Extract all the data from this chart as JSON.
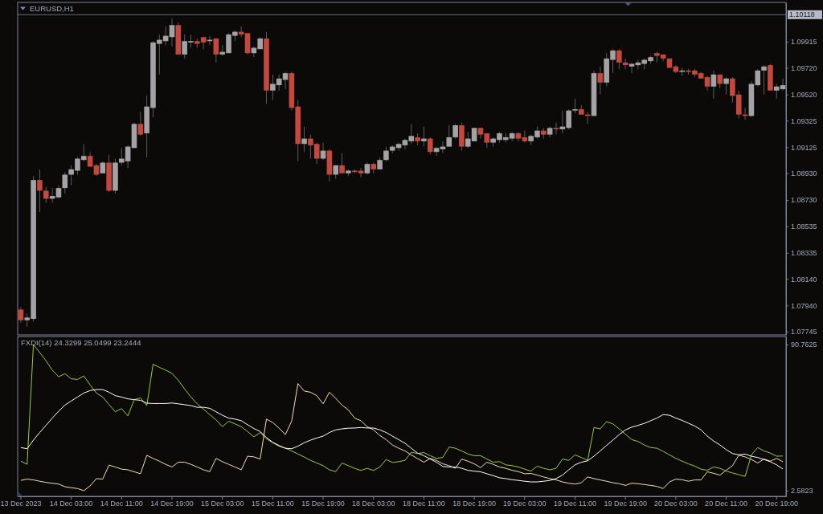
{
  "chart_data": [
    {
      "type": "candlestick",
      "title": "EURUSD,H1",
      "categories": [
        null,
        null,
        null,
        null,
        null,
        null,
        null,
        null,
        null,
        null,
        null,
        null,
        null,
        null,
        null,
        null,
        null,
        null,
        null,
        null,
        null,
        null,
        null,
        null,
        null,
        null,
        null,
        null,
        null,
        null,
        null,
        null,
        null,
        null,
        null,
        null,
        null,
        null,
        null,
        null,
        null,
        null,
        null,
        null,
        null,
        null,
        null,
        null,
        null,
        null,
        null,
        null,
        null,
        null,
        null,
        null,
        null,
        null,
        null,
        null,
        null,
        null,
        null,
        null,
        null,
        null,
        null,
        null,
        null,
        null,
        null,
        null,
        null,
        null,
        null,
        null,
        null,
        null,
        null,
        null,
        null,
        null,
        null,
        null,
        null,
        null,
        null,
        null,
        null,
        null,
        null,
        null,
        null,
        null,
        null,
        null,
        null,
        null,
        null,
        null,
        null,
        null,
        null,
        null,
        null,
        null,
        null,
        null,
        null,
        null,
        null,
        null,
        null,
        null,
        null,
        null,
        null,
        null,
        null,
        null,
        null,
        null
      ],
      "ohlc": [
        [
          1.0791,
          1.0793,
          1.0781,
          1.0783
        ],
        [
          1.0783,
          1.0788,
          1.0778,
          1.0785
        ],
        [
          1.0784,
          1.0891,
          1.0782,
          1.0888
        ],
        [
          1.0888,
          1.0896,
          1.0864,
          1.088
        ],
        [
          1.088,
          1.0883,
          1.0871,
          1.0874
        ],
        [
          1.0874,
          1.0882,
          1.0871,
          1.0876
        ],
        [
          1.0875,
          1.0884,
          1.0874,
          1.0882
        ],
        [
          1.0882,
          1.0894,
          1.0878,
          1.0892
        ],
        [
          1.0892,
          1.0899,
          1.0884,
          1.0896
        ],
        [
          1.0895,
          1.0905,
          1.0892,
          1.0904
        ],
        [
          1.0903,
          1.0915,
          1.0902,
          1.0906
        ],
        [
          1.0906,
          1.0909,
          1.0898,
          1.0898
        ],
        [
          1.0899,
          1.09,
          1.0891,
          1.0892
        ],
        [
          1.0893,
          1.0902,
          1.0893,
          1.0901
        ],
        [
          1.0901,
          1.0907,
          1.0879,
          1.088
        ],
        [
          1.088,
          1.0904,
          1.0878,
          1.0901
        ],
        [
          1.0901,
          1.0912,
          1.0899,
          1.0904
        ],
        [
          1.0902,
          1.0914,
          1.0897,
          1.0913
        ],
        [
          1.0912,
          1.0931,
          1.0912,
          1.093
        ],
        [
          1.093,
          1.0939,
          1.0921,
          1.0922
        ],
        [
          1.0923,
          1.0951,
          1.0905,
          1.0943
        ],
        [
          1.0942,
          1.0992,
          1.0935,
          1.0991
        ],
        [
          1.099,
          1.0997,
          1.0967,
          1.0993
        ],
        [
          1.0992,
          1.1003,
          1.0989,
          1.0996
        ],
        [
          1.0995,
          1.1009,
          1.0988,
          1.1004
        ],
        [
          1.1004,
          1.1006,
          1.0982,
          1.0982
        ],
        [
          1.0982,
          1.0997,
          1.0979,
          1.0992
        ],
        [
          1.0991,
          1.0997,
          1.0987,
          1.0992
        ],
        [
          1.0992,
          1.0994,
          1.0987,
          1.099
        ],
        [
          1.0995,
          1.0995,
          1.0986,
          1.0991
        ],
        [
          1.0992,
          1.0996,
          1.0989,
          1.0993
        ],
        [
          1.0994,
          1.0994,
          1.0976,
          1.0982
        ],
        [
          1.0982,
          1.0989,
          1.0981,
          1.0984
        ],
        [
          1.0983,
          1.0998,
          1.0983,
          1.0997
        ],
        [
          1.0996,
          1.1,
          1.0992,
          1.0999
        ],
        [
          1.0999,
          1.1003,
          1.0995,
          1.0997
        ],
        [
          1.0998,
          1.0998,
          1.0982,
          1.0983
        ],
        [
          1.0983,
          1.0988,
          1.098,
          1.0987
        ],
        [
          1.0986,
          1.0995,
          1.0986,
          1.0994
        ],
        [
          1.0994,
          1.0999,
          1.0945,
          1.0955
        ],
        [
          1.0955,
          1.0967,
          1.0948,
          1.096
        ],
        [
          1.0959,
          1.0967,
          1.0955,
          1.0964
        ],
        [
          1.0963,
          1.0969,
          1.0956,
          1.0968
        ],
        [
          1.0968,
          1.0969,
          1.094,
          1.0942
        ],
        [
          1.0943,
          1.0948,
          1.0902,
          1.0915
        ],
        [
          1.0915,
          1.0928,
          1.0909,
          1.0919
        ],
        [
          1.0919,
          1.0922,
          1.0904,
          1.0914
        ],
        [
          1.0915,
          1.0916,
          1.09,
          1.0904
        ],
        [
          1.0904,
          1.0916,
          1.0903,
          1.091
        ],
        [
          1.091,
          1.0911,
          1.0887,
          1.0892
        ],
        [
          1.0892,
          1.0899,
          1.0889,
          1.0899
        ],
        [
          1.0899,
          1.0908,
          1.0893,
          1.0893
        ],
        [
          1.0893,
          1.0896,
          1.0891,
          1.0895
        ],
        [
          1.0895,
          1.0896,
          1.0893,
          1.0894
        ],
        [
          1.0895,
          1.0897,
          1.089,
          1.0893
        ],
        [
          1.0893,
          1.0901,
          1.0892,
          1.09
        ],
        [
          1.09,
          1.0901,
          1.0893,
          1.0896
        ],
        [
          1.0896,
          1.0905,
          1.0896,
          1.0903
        ],
        [
          1.0903,
          1.0913,
          1.0902,
          1.091
        ],
        [
          1.091,
          1.0914,
          1.0908,
          1.0913
        ],
        [
          1.0912,
          1.0916,
          1.091,
          1.0915
        ],
        [
          1.0914,
          1.0919,
          1.0911,
          1.0918
        ],
        [
          1.0917,
          1.093,
          1.0915,
          1.0921
        ],
        [
          1.092,
          1.0923,
          1.0914,
          1.0917
        ],
        [
          1.0917,
          1.0928,
          1.0913,
          1.0919
        ],
        [
          1.0919,
          1.092,
          1.0907,
          1.0909
        ],
        [
          1.0909,
          1.0913,
          1.0906,
          1.0912
        ],
        [
          1.0911,
          1.0917,
          1.0908,
          1.0913
        ],
        [
          1.0913,
          1.0929,
          1.0913,
          1.092
        ],
        [
          1.092,
          1.093,
          1.0919,
          1.0929
        ],
        [
          1.0929,
          1.0931,
          1.091,
          1.0913
        ],
        [
          1.0913,
          1.0924,
          1.0912,
          1.0919
        ],
        [
          1.0917,
          1.0927,
          1.0917,
          1.0927
        ],
        [
          1.0927,
          1.0927,
          1.0919,
          1.0922
        ],
        [
          1.0923,
          1.0923,
          1.0912,
          1.0916
        ],
        [
          1.0916,
          1.092,
          1.0913,
          1.0919
        ],
        [
          1.0918,
          1.0924,
          1.0916,
          1.0923
        ],
        [
          1.0918,
          1.0923,
          1.0916,
          1.092
        ],
        [
          1.0919,
          1.0924,
          1.0917,
          1.0923
        ],
        [
          1.0923,
          1.0924,
          1.0917,
          1.0919
        ],
        [
          1.092,
          1.0925,
          1.0916,
          1.0917
        ],
        [
          1.0917,
          1.0922,
          1.0914,
          1.0921
        ],
        [
          1.092,
          1.0928,
          1.0919,
          1.0925
        ],
        [
          1.0925,
          1.0927,
          1.0919,
          1.0922
        ],
        [
          1.0922,
          1.0928,
          1.092,
          1.0927
        ],
        [
          1.0927,
          1.0931,
          1.0922,
          1.0926
        ],
        [
          1.0926,
          1.094,
          1.0923,
          1.0928
        ],
        [
          1.0927,
          1.0941,
          1.0926,
          1.094
        ],
        [
          1.094,
          1.0949,
          1.0938,
          1.0941
        ],
        [
          1.0941,
          1.0944,
          1.0937,
          1.0937
        ],
        [
          1.0937,
          1.0939,
          1.093,
          1.0936
        ],
        [
          1.0936,
          1.097,
          1.0936,
          1.0968
        ],
        [
          1.0968,
          1.0973,
          1.0952,
          1.0961
        ],
        [
          1.0961,
          1.0983,
          1.0958,
          1.0979
        ],
        [
          1.0978,
          1.0986,
          1.0968,
          1.0985
        ],
        [
          1.0985,
          1.0986,
          1.0971,
          1.0976
        ],
        [
          1.0976,
          1.0979,
          1.0971,
          1.0974
        ],
        [
          1.0973,
          1.0976,
          1.0968,
          1.0975
        ],
        [
          1.0974,
          1.0978,
          1.0971,
          1.0976
        ],
        [
          1.0975,
          1.0979,
          1.0971,
          1.0978
        ],
        [
          1.0977,
          1.0981,
          1.0975,
          1.098
        ],
        [
          1.0983,
          1.0984,
          1.0976,
          1.0981
        ],
        [
          1.0982,
          1.0982,
          1.0977,
          1.0979
        ],
        [
          1.0979,
          1.0979,
          1.0972,
          1.0972
        ],
        [
          1.0973,
          1.0974,
          1.0968,
          1.0969
        ],
        [
          1.0969,
          1.0972,
          1.0966,
          1.097
        ],
        [
          1.097,
          1.0971,
          1.0967,
          1.0969
        ],
        [
          1.097,
          1.0971,
          1.0965,
          1.0967
        ],
        [
          1.0968,
          1.0969,
          1.0964,
          1.0964
        ],
        [
          1.0965,
          1.0966,
          1.0955,
          1.0958
        ],
        [
          1.0958,
          1.097,
          1.0949,
          1.0967
        ],
        [
          1.0967,
          1.0967,
          1.0957,
          1.096
        ],
        [
          1.096,
          1.0965,
          1.0952,
          1.0964
        ],
        [
          1.0964,
          1.0965,
          1.0946,
          1.0951
        ],
        [
          1.0952,
          1.0955,
          1.0934,
          1.0937
        ],
        [
          1.0937,
          1.0942,
          1.0933,
          1.0936
        ],
        [
          1.0936,
          1.0962,
          1.0935,
          1.096
        ],
        [
          1.0959,
          1.0971,
          1.0958,
          1.097
        ],
        [
          1.097,
          1.0974,
          1.0952,
          1.0973
        ],
        [
          1.0974,
          1.0975,
          1.0955,
          1.0955
        ],
        [
          1.0955,
          1.096,
          1.0949,
          1.0958
        ],
        [
          1.0956,
          1.0964,
          1.0955,
          1.0959
        ]
      ],
      "colors": [
        "#c4493c",
        "#a3a3a6",
        "#a3a3a6",
        "#c4493c",
        "#c4493c",
        "#a3a3a6",
        "#a3a3a6",
        "#a3a3a6",
        "#a3a3a6",
        "#a3a3a6",
        "#a3a3a6",
        "#c4493c",
        "#c4493c",
        "#a3a3a6",
        "#c4493c",
        "#a3a3a6",
        "#a3a3a6",
        "#a3a3a6",
        "#a3a3a6",
        "#c4493c",
        "#a3a3a6",
        "#a3a3a6",
        "#a3a3a6",
        "#a3a3a6",
        "#a3a3a6",
        "#c4493c",
        "#a3a3a6",
        "#a3a3a6",
        "#c4493c",
        "#c4493c",
        "#a3a3a6",
        "#c4493c",
        "#a3a3a6",
        "#a3a3a6",
        "#a3a3a6",
        "#c4493c",
        "#c4493c",
        "#a3a3a6",
        "#a3a3a6",
        "#c4493c",
        "#a3a3a6",
        "#a3a3a6",
        "#a3a3a6",
        "#c4493c",
        "#c4493c",
        "#a3a3a6",
        "#c4493c",
        "#c4493c",
        "#a3a3a6",
        "#c4493c",
        "#a3a3a6",
        "#c4493c",
        "#a3a3a6",
        "#c4493c",
        "#c4493c",
        "#a3a3a6",
        "#c4493c",
        "#a3a3a6",
        "#a3a3a6",
        "#a3a3a6",
        "#a3a3a6",
        "#a3a3a6",
        "#a3a3a6",
        "#c4493c",
        "#a3a3a6",
        "#c4493c",
        "#a3a3a6",
        "#a3a3a6",
        "#a3a3a6",
        "#a3a3a6",
        "#c4493c",
        "#a3a3a6",
        "#a3a3a6",
        "#c4493c",
        "#c4493c",
        "#a3a3a6",
        "#a3a3a6",
        "#a3a3a6",
        "#a3a3a6",
        "#c4493c",
        "#c4493c",
        "#a3a3a6",
        "#a3a3a6",
        "#c4493c",
        "#a3a3a6",
        "#c4493c",
        "#a3a3a6",
        "#a3a3a6",
        "#a3a3a6",
        "#c4493c",
        "#c4493c",
        "#a3a3a6",
        "#c4493c",
        "#a3a3a6",
        "#a3a3a6",
        "#c4493c",
        "#c4493c",
        "#a3a3a6",
        "#a3a3a6",
        "#a3a3a6",
        "#a3a3a6",
        "#c4493c",
        "#c4493c",
        "#c4493c",
        "#c4493c",
        "#a3a3a6",
        "#c4493c",
        "#c4493c",
        "#c4493c",
        "#c4493c",
        "#a3a3a6",
        "#c4493c",
        "#a3a3a6",
        "#c4493c",
        "#c4493c",
        "#c4493c",
        "#a3a3a6",
        "#a3a3a6",
        "#a3a3a6",
        "#c4493c",
        "#a3a3a6",
        "#a3a3a6"
      ],
      "ylim": [
        1.0772,
        1.1021
      ],
      "yticks": [
        1.09915,
        {
          "value": 1.0972,
          "label": "1.09720"
        },
        {
          "value": 1.0952,
          "label": "1.09520"
        },
        1.09325,
        1.09125,
        {
          "value": 1.0893,
          "label": "1.08930"
        },
        {
          "value": 1.0873,
          "label": "1.08730"
        },
        1.08535,
        1.08335,
        {
          "value": 1.0814,
          "label": "1.08140"
        },
        {
          "value": 1.0794,
          "label": "1.07940"
        },
        1.07745
      ],
      "ref_lines": [
        {
          "axis": "y",
          "value": 1.10118,
          "label": "1.10118",
          "color": "#5f6784"
        }
      ],
      "tick_labels": "y"
    },
    {
      "type": "line",
      "title": "FXDI(14) 24.3299 25.0499 23.2444",
      "categories": [
        "13 Dec 2023",
        null,
        null,
        null,
        null,
        null,
        null,
        null,
        "14 Dec 03:00",
        null,
        null,
        null,
        null,
        null,
        null,
        null,
        "14 Dec 11:00",
        null,
        null,
        null,
        null,
        null,
        null,
        null,
        "14 Dec 19:00",
        null,
        null,
        null,
        null,
        null,
        null,
        null,
        "15 Dec 03:00",
        null,
        null,
        null,
        null,
        null,
        null,
        null,
        "15 Dec 11:00",
        null,
        null,
        null,
        null,
        null,
        null,
        null,
        "15 Dec 19:00",
        null,
        null,
        null,
        null,
        null,
        null,
        null,
        "18 Dec 03:00",
        null,
        null,
        null,
        null,
        null,
        null,
        null,
        "18 Dec 11:00",
        null,
        null,
        null,
        null,
        null,
        null,
        null,
        "18 Dec 19:00",
        null,
        null,
        null,
        null,
        null,
        null,
        null,
        "19 Dec 03:00",
        null,
        null,
        null,
        null,
        null,
        null,
        null,
        "19 Dec 11:00",
        null,
        null,
        null,
        null,
        null,
        null,
        null,
        "19 Dec 19:00",
        null,
        null,
        null,
        null,
        null,
        null,
        null,
        "20 Dec 03:00",
        null,
        null,
        null,
        null,
        null,
        null,
        null,
        "20 Dec 11:00",
        null,
        null,
        null,
        null,
        null,
        null,
        null,
        "20 Dec 19:00",
        null
      ],
      "series": [
        {
          "color": "#f5deb3",
          "values": [
            8.8,
            9.6,
            9.1,
            8.3,
            7.6,
            7.1,
            6.6,
            5.0,
            4.4,
            3.9,
            2.6,
            5.5,
            9.9,
            9.6,
            18.0,
            16.9,
            15.6,
            15.2,
            14.0,
            12.8,
            23.9,
            22.1,
            20.4,
            18.5,
            16.9,
            19.8,
            19.8,
            18.5,
            16.9,
            15.2,
            14.1,
            22.1,
            20.1,
            18.5,
            16.9,
            15.2,
            23.4,
            23.0,
            21.7,
            45.8,
            43.7,
            40.4,
            36.4,
            44.5,
            67.2,
            62.7,
            62.0,
            59.9,
            55.0,
            62.0,
            58.3,
            54.2,
            51.3,
            46.4,
            44.8,
            41.2,
            39.3,
            35.9,
            33.4,
            30.2,
            28.2,
            26.6,
            24.2,
            21.9,
            19.8,
            22.1,
            20.9,
            18.8,
            17.7,
            16.1,
            21.7,
            20.4,
            18.8,
            16.5,
            19.8,
            18.5,
            16.9,
            16.1,
            14.9,
            14.1,
            12.8,
            13.0,
            12.0,
            10.9,
            9.9,
            9.1,
            7.9,
            7.1,
            6.6,
            7.4,
            10.9,
            9.9,
            9.1,
            8.3,
            7.4,
            6.8,
            5.8,
            7.1,
            6.8,
            6.3,
            5.8,
            5.2,
            3.9,
            7.9,
            9.6,
            9.2,
            8.3,
            9.1,
            9.1,
            14.0,
            13.1,
            12.0,
            14.9,
            17.7,
            24.0,
            23.0,
            21.4,
            19.3,
            21.7,
            20.4,
            22.1,
            20.1
          ]
        },
        {
          "color": "#9acd32",
          "values": [
            20.4,
            18.5,
            90.8,
            85.9,
            81.0,
            75.3,
            71.3,
            73.2,
            70.1,
            69.7,
            71.8,
            66.4,
            61.5,
            59.1,
            54.6,
            50.2,
            52.1,
            47.7,
            57.5,
            58.6,
            53.9,
            78.9,
            77.0,
            75.3,
            73.4,
            69.2,
            64.0,
            59.1,
            55.0,
            51.8,
            48.5,
            45.3,
            41.2,
            44.5,
            42.9,
            41.2,
            38.3,
            35.1,
            37.7,
            33.9,
            31.5,
            29.4,
            28.2,
            26.6,
            24.7,
            22.9,
            20.9,
            19.3,
            17.7,
            15.2,
            14.1,
            19.3,
            17.7,
            16.1,
            14.8,
            16.1,
            14.8,
            16.9,
            21.4,
            19.6,
            20.1,
            20.9,
            25.8,
            25.0,
            25.6,
            23.7,
            22.1,
            22.7,
            28.9,
            28.2,
            26.6,
            24.7,
            23.7,
            23.7,
            21.7,
            19.8,
            20.1,
            18.2,
            17.7,
            16.9,
            15.6,
            14.4,
            17.4,
            16.1,
            15.2,
            16.1,
            21.7,
            20.9,
            24.2,
            22.6,
            20.9,
            40.7,
            39.9,
            44.2,
            42.9,
            39.9,
            36.7,
            33.4,
            32.3,
            30.2,
            28.6,
            28.2,
            26.3,
            24.2,
            22.1,
            20.4,
            18.8,
            17.4,
            15.6,
            14.9,
            16.9,
            16.1,
            14.4,
            13.3,
            12.3,
            11.2,
            24.2,
            28.6,
            26.6,
            25.3,
            23.4,
            23.5
          ]
        },
        {
          "color": "#ffffff",
          "values": [
            28.6,
            27.9,
            33.1,
            37.7,
            42.0,
            46.4,
            50.5,
            54.2,
            56.7,
            59.1,
            61.5,
            63.0,
            63.6,
            63.6,
            62.0,
            59.9,
            59.1,
            58.0,
            57.5,
            57.1,
            55.4,
            55.2,
            55.2,
            55.2,
            55.5,
            55.0,
            54.5,
            53.9,
            52.9,
            52.9,
            52.3,
            50.2,
            48.1,
            46.4,
            45.8,
            44.8,
            42.4,
            40.1,
            38.3,
            34.7,
            31.8,
            29.9,
            28.2,
            27.9,
            29.5,
            31.5,
            33.1,
            34.4,
            35.5,
            37.7,
            39.3,
            39.9,
            40.3,
            40.4,
            40.7,
            40.4,
            40.4,
            39.3,
            37.7,
            35.5,
            33.4,
            31.2,
            28.2,
            25.3,
            23.7,
            21.7,
            19.8,
            17.2,
            16.9,
            16.9,
            16.1,
            14.9,
            14.4,
            14.0,
            12.8,
            11.7,
            10.4,
            9.9,
            9.2,
            8.8,
            8.3,
            7.9,
            7.9,
            8.3,
            8.8,
            9.9,
            12.0,
            15.2,
            18.2,
            19.8,
            20.6,
            23.4,
            26.6,
            29.9,
            33.1,
            36.4,
            39.3,
            40.9,
            42.0,
            43.2,
            44.8,
            46.4,
            48.5,
            48.1,
            46.4,
            45.0,
            43.3,
            41.6,
            39.3,
            35.5,
            32.6,
            30.2,
            27.4,
            25.0,
            24.3,
            24.7,
            23.4,
            22.6,
            21.4,
            20.1,
            18.2,
            15.7
          ]
        }
      ],
      "ylim": [
        -0.8,
        95.6
      ],
      "yticks": [
        90.7625,
        2.5823
      ]
    }
  ]
}
